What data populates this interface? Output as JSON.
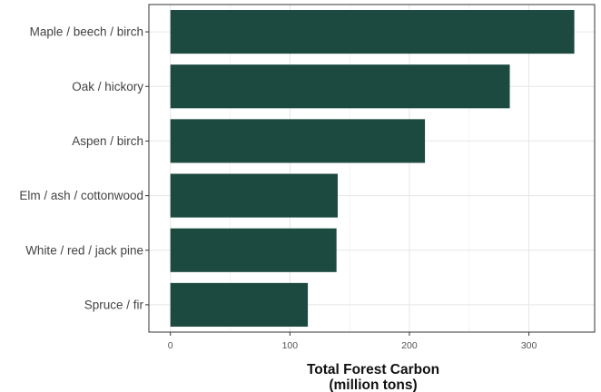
{
  "chart_data": {
    "type": "bar",
    "orientation": "horizontal",
    "categories": [
      "Maple / beech / birch",
      "Oak / hickory",
      "Aspen / birch",
      "Elm / ash / cottonwood",
      "White / red / jack pine",
      "Spruce / fir"
    ],
    "values": [
      338,
      284,
      213,
      140,
      139,
      115
    ],
    "xlabel_line1": "Total Forest Carbon",
    "xlabel_line2": "(million tons)",
    "xlim": [
      -18,
      355
    ],
    "x_ticks": [
      0,
      100,
      200,
      300
    ],
    "grid": true,
    "bar_color": "#1c4a40"
  }
}
